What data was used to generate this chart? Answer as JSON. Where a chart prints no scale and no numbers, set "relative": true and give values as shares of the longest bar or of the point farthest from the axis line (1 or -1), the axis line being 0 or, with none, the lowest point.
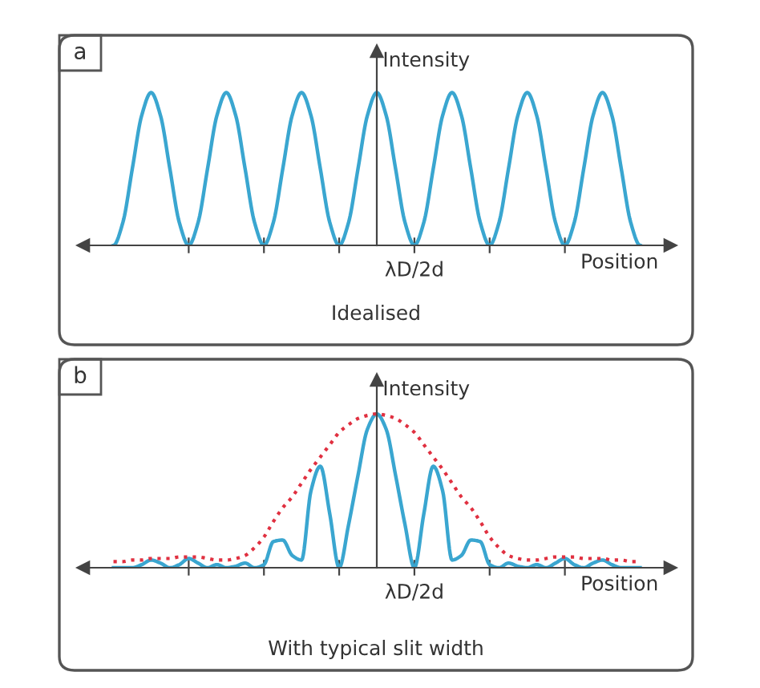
{
  "chart_data": [
    {
      "type": "line",
      "title": "a",
      "xlabel": "Position",
      "ylabel": "Intensity",
      "relative": true,
      "tick_labels": false,
      "grid": false,
      "marker": "none",
      "categories": [
        null,
        null,
        null,
        null,
        null,
        null,
        null,
        null,
        null,
        null,
        null,
        null,
        null,
        null,
        null,
        null,
        null,
        null,
        null,
        null,
        null,
        null,
        null,
        null,
        null,
        null,
        null,
        null,
        null,
        null,
        null,
        null,
        null,
        null,
        null,
        null,
        null,
        null,
        null,
        null,
        null,
        null,
        null,
        null,
        null,
        null,
        null,
        null,
        null,
        null,
        null,
        null,
        null,
        null,
        null,
        null,
        null
      ],
      "annotations": [
        "λD/2d",
        "Idealised"
      ],
      "series": [
        {
          "color": "#3aa6d0",
          "line_style": "solid",
          "values": [
            0,
            0.15,
            0.5,
            0.85,
            1,
            0.85,
            0.5,
            0.15,
            0,
            0.15,
            0.5,
            0.85,
            1,
            0.85,
            0.5,
            0.15,
            0,
            0.15,
            0.5,
            0.85,
            1,
            0.85,
            0.5,
            0.15,
            0,
            0.15,
            0.5,
            0.85,
            1,
            0.85,
            0.5,
            0.15,
            0,
            0.15,
            0.5,
            0.85,
            1,
            0.85,
            0.5,
            0.15,
            0,
            0.15,
            0.5,
            0.85,
            1,
            0.85,
            0.5,
            0.15,
            0,
            0.15,
            0.5,
            0.85,
            1,
            0.85,
            0.5,
            0.15,
            0
          ]
        }
      ]
    },
    {
      "type": "line",
      "title": "b",
      "xlabel": "Position",
      "ylabel": "Intensity",
      "relative": true,
      "tick_labels": false,
      "grid": false,
      "marker": "none",
      "categories": [
        null,
        null,
        null,
        null,
        null,
        null,
        null,
        null,
        null,
        null,
        null,
        null,
        null,
        null,
        null,
        null,
        null,
        null,
        null,
        null,
        null,
        null,
        null,
        null,
        null,
        null,
        null,
        null,
        null,
        null,
        null,
        null,
        null,
        null,
        null,
        null,
        null,
        null,
        null,
        null,
        null,
        null,
        null,
        null,
        null,
        null,
        null,
        null,
        null,
        null,
        null,
        null,
        null,
        null,
        null,
        null,
        null
      ],
      "annotations": [
        "λD/2d",
        "With typical slit width"
      ],
      "series": [
        {
          "color": "#3aa6d0",
          "line_style": "solid",
          "values": [
            0,
            0,
            0,
            0.02,
            0.05,
            0.03,
            0,
            0.02,
            0.06,
            0.03,
            0,
            0.02,
            0,
            0.01,
            0.03,
            0,
            0.02,
            0.17,
            0.18,
            0.08,
            0.05,
            0.5,
            0.66,
            0.35,
            0,
            0.28,
            0.6,
            0.9,
            1,
            0.9,
            0.6,
            0.28,
            0,
            0.35,
            0.66,
            0.5,
            0.05,
            0.08,
            0.18,
            0.17,
            0.02,
            0,
            0.03,
            0.01,
            0,
            0.02,
            0,
            0.03,
            0.06,
            0.02,
            0,
            0.03,
            0.05,
            0.02,
            0,
            0,
            0
          ]
        },
        {
          "color": "#e03040",
          "line_style": "dotted",
          "values": [
            0.04,
            0.04,
            0.05,
            0.05,
            0.06,
            0.06,
            0.06,
            0.07,
            0.07,
            0.07,
            0.06,
            0.05,
            0.05,
            0.06,
            0.08,
            0.13,
            0.2,
            0.3,
            0.39,
            0.46,
            0.55,
            0.64,
            0.72,
            0.8,
            0.88,
            0.93,
            0.97,
            0.99,
            1,
            0.99,
            0.97,
            0.93,
            0.88,
            0.8,
            0.72,
            0.64,
            0.55,
            0.46,
            0.39,
            0.3,
            0.2,
            0.13,
            0.08,
            0.06,
            0.05,
            0.05,
            0.06,
            0.07,
            0.07,
            0.07,
            0.06,
            0.06,
            0.06,
            0.05,
            0.05,
            0.04,
            0.04
          ]
        }
      ]
    }
  ]
}
